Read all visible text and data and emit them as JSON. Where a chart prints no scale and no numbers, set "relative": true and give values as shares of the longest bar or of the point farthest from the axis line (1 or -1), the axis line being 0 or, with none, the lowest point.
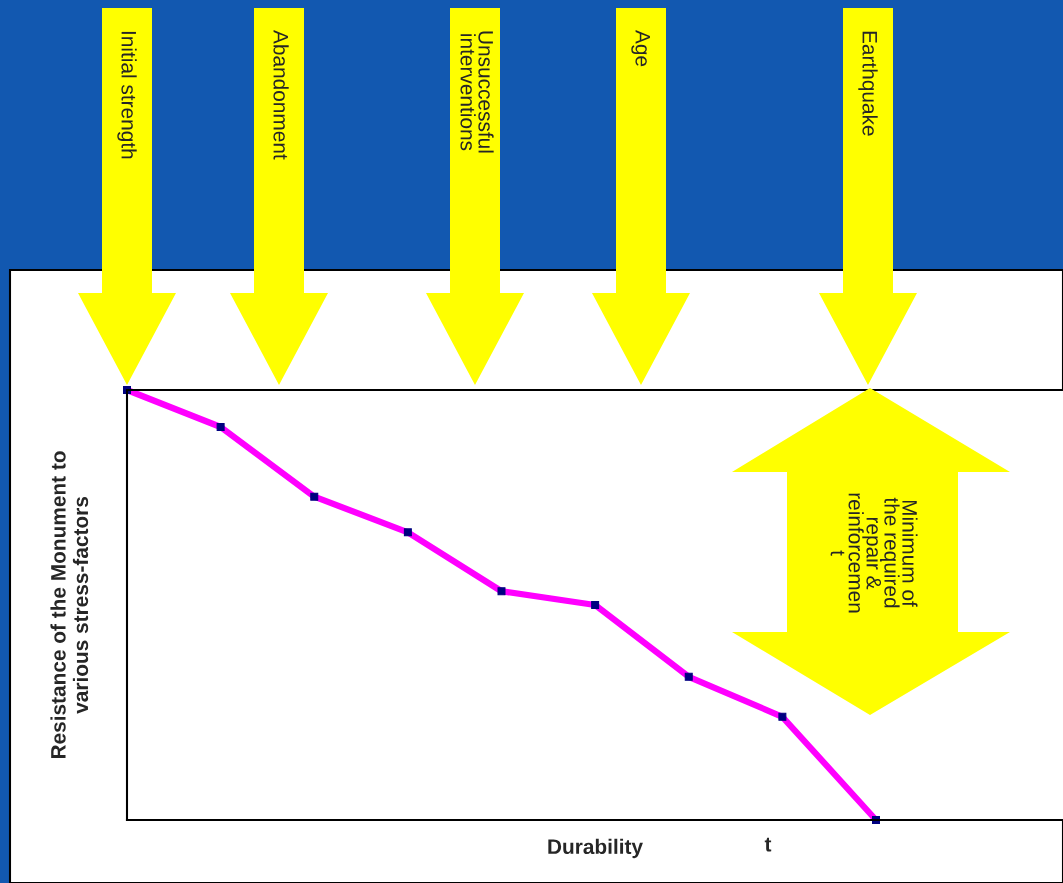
{
  "chart_data": {
    "type": "line",
    "relative": true,
    "categories": [
      null,
      null,
      null,
      null,
      null,
      null,
      null,
      null,
      null
    ],
    "series": [
      {
        "color": "#ff00ff",
        "values": [
          1,
          0.914,
          0.752,
          0.669,
          0.532,
          0.5,
          0.333,
          0.24,
          0
        ]
      }
    ],
    "marker": "square",
    "xlabel": "Durability",
    "ylabel": "Resistance of the Monument to\nvarious stress-factors",
    "annotations": [
      "Initial strength",
      "Abandonment",
      "Unsuccessful\ninterventions",
      "Age",
      "Earthquake",
      "Minimum of\nthe required\nrepair &\nreinforcemen\nt",
      "t"
    ],
    "grid": false,
    "legend": false
  }
}
